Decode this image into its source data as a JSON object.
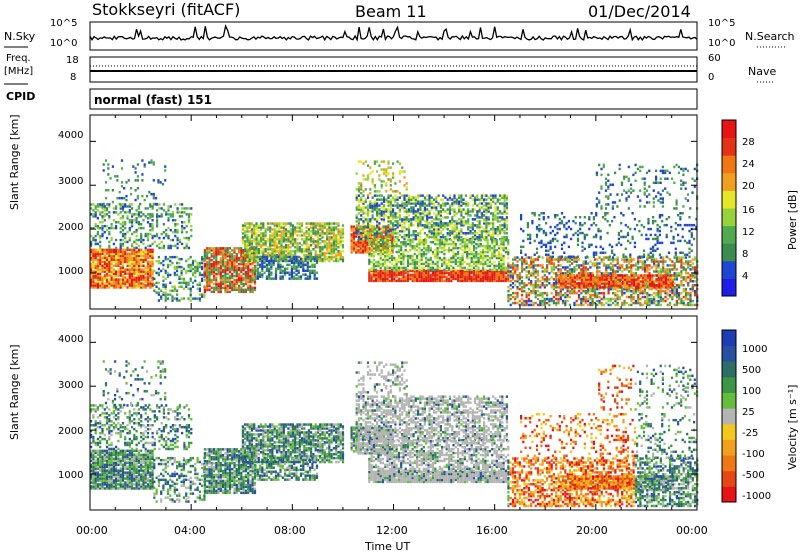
{
  "header": {
    "title": "Stokkseyri (fitACF)",
    "beam": "Beam 11",
    "date": "01/Dec/2014"
  },
  "noise_panel": {
    "left_label": "N.Sky",
    "right_label": "N.Search",
    "left_ticks": [
      "10^5",
      "10^0"
    ],
    "right_ticks": [
      "10^5",
      "10^0"
    ]
  },
  "freq_panel": {
    "left_label_line1": "Freq.",
    "left_label_line2": "[MHz]",
    "right_label": "Nave",
    "left_ticks": [
      "18",
      "8"
    ],
    "right_ticks": [
      "60",
      "0"
    ]
  },
  "cpid": {
    "label": "CPID",
    "mode": "normal (fast) 151"
  },
  "chart_data": [
    {
      "type": "heatmap",
      "name": "power",
      "ylabel": "Slant Range [km]",
      "xlabel": "",
      "ylim": [
        180,
        4600
      ],
      "yticks": [
        "1000",
        "2000",
        "3000",
        "4000"
      ],
      "colorbar_label": "Power [dB]",
      "colorbar_ticks": [
        "4",
        "8",
        "12",
        "16",
        "20",
        "24",
        "28"
      ],
      "colors": [
        "#1e1ee6",
        "#1e46d2",
        "#3c8c50",
        "#50aa50",
        "#96d23c",
        "#e6e628",
        "#f0a01e",
        "#f07814",
        "#e63214",
        "#e61414"
      ]
    },
    {
      "type": "heatmap",
      "name": "velocity",
      "ylabel": "Slant Range [km]",
      "xlabel": "Time UT",
      "ylim": [
        180,
        4600
      ],
      "yticks": [
        "1000",
        "2000",
        "3000",
        "4000"
      ],
      "xticks": [
        "00:00",
        "04:00",
        "08:00",
        "12:00",
        "16:00",
        "20:00",
        "00:00"
      ],
      "colorbar_label": "Velocity [m s⁻¹]",
      "colorbar_ticks": [
        "1000",
        "500",
        "100",
        "25",
        "-25",
        "-100",
        "-500",
        "-1000"
      ],
      "colors": [
        "#1e3cb4",
        "#2850a0",
        "#2d6e64",
        "#3c9646",
        "#64be3c",
        "#b4b4b4",
        "#f0c81e",
        "#f0a01e",
        "#f07814",
        "#e64614",
        "#e61414"
      ]
    }
  ]
}
